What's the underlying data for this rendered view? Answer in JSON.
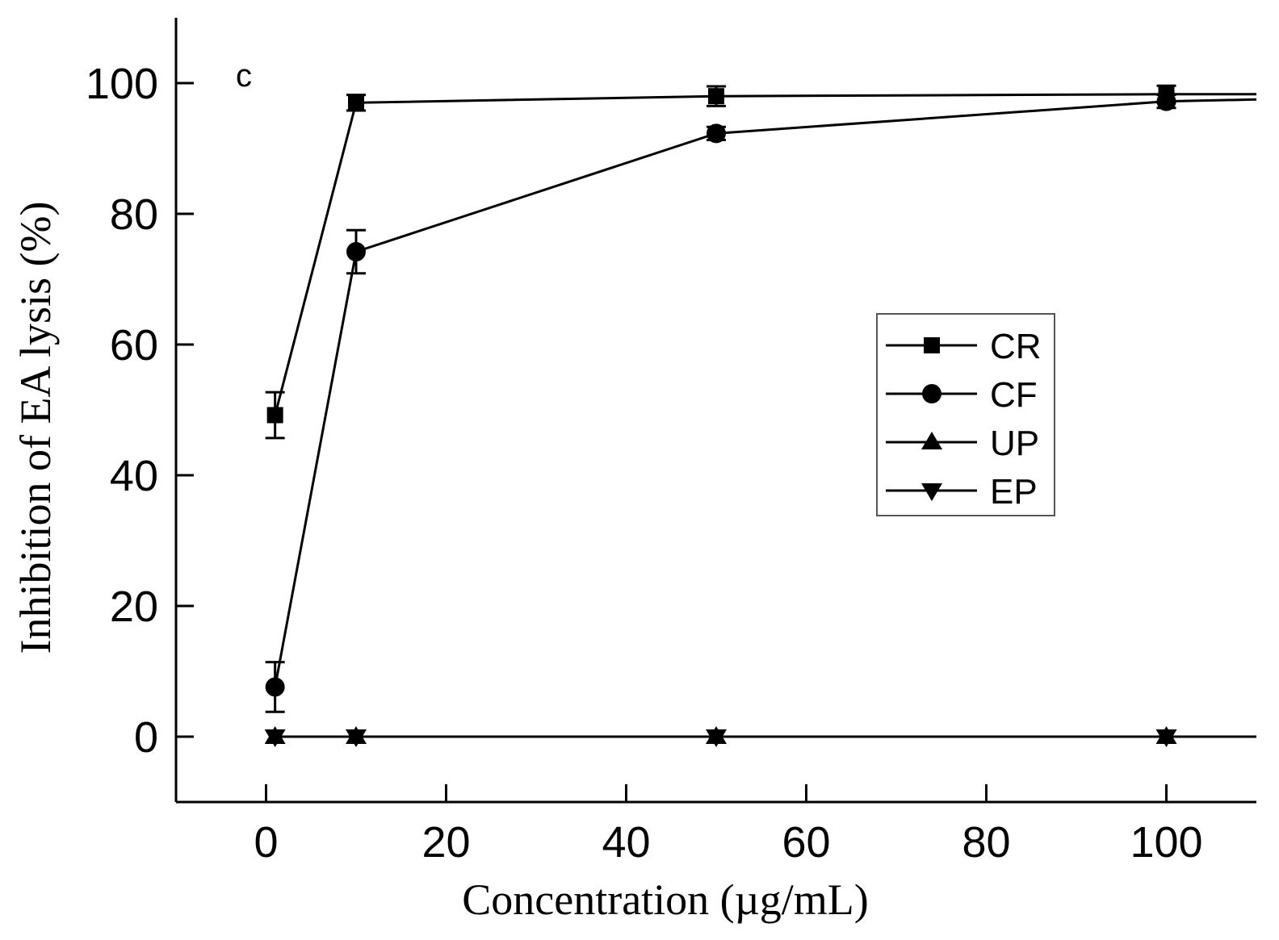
{
  "chart_data": {
    "type": "line",
    "panel_label": "c",
    "xlabel": "Concentration (µg/mL)",
    "ylabel": "Inhibition of EA lysis (%)",
    "xlim": [
      -10,
      110
    ],
    "ylim": [
      -10,
      110
    ],
    "xticks": [
      0,
      20,
      40,
      60,
      80,
      100
    ],
    "yticks": [
      0,
      20,
      40,
      60,
      80,
      100
    ],
    "x": [
      1,
      10,
      50,
      100
    ],
    "legend_position": "center-right",
    "series": [
      {
        "name": "CR",
        "marker": "square",
        "values": [
          49.2,
          97.0,
          98.0,
          98.3
        ],
        "errors": [
          3.5,
          1.2,
          1.5,
          1.3
        ],
        "extend_to": 98.3
      },
      {
        "name": "CF",
        "marker": "circle",
        "values": [
          7.6,
          74.2,
          92.3,
          97.2
        ],
        "errors": [
          3.8,
          3.3,
          1.0,
          1.0
        ],
        "extend_to": 97.5
      },
      {
        "name": "UP",
        "marker": "triangle-up",
        "values": [
          0,
          0,
          0,
          0
        ],
        "errors": [
          0,
          0,
          0,
          0
        ],
        "extend_to": 0
      },
      {
        "name": "EP",
        "marker": "triangle-down",
        "values": [
          0,
          0,
          0,
          0
        ],
        "errors": [
          0,
          0,
          0,
          0
        ],
        "extend_to": 0
      }
    ]
  }
}
